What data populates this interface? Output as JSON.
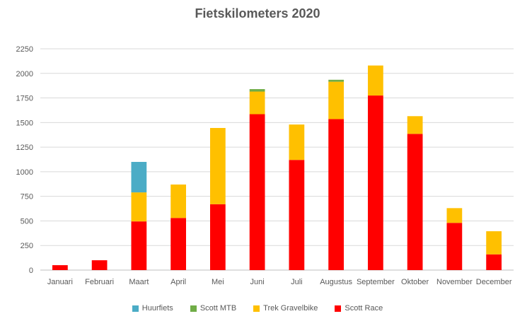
{
  "chart_data": {
    "type": "bar",
    "stacked": true,
    "title": "Fietskilometers 2020",
    "xlabel": "",
    "ylabel": "",
    "ylim": [
      0,
      2250
    ],
    "yticks": [
      "0",
      "250",
      "500",
      "750",
      "1000",
      "1250",
      "1500",
      "1750",
      "2000",
      "2250"
    ],
    "grid": true,
    "legend_position": "bottom",
    "categories": [
      "Januari",
      "Februari",
      "Maart",
      "April",
      "Mei",
      "Juni",
      "Juli",
      "Augustus",
      "September",
      "Oktober",
      "November",
      "December"
    ],
    "series": [
      {
        "name": "Scott Race",
        "color": "#ff0000",
        "values": [
          50,
          100,
          495,
          530,
          670,
          1585,
          1120,
          1535,
          1775,
          1385,
          480,
          160
        ]
      },
      {
        "name": "Trek Gravelbike",
        "color": "#ffc000",
        "values": [
          0,
          0,
          295,
          340,
          775,
          230,
          360,
          380,
          305,
          180,
          150,
          235
        ]
      },
      {
        "name": "Scott MTB",
        "color": "#70ad47",
        "values": [
          0,
          0,
          0,
          0,
          0,
          25,
          0,
          20,
          0,
          0,
          0,
          0
        ]
      },
      {
        "name": "Huurfiets",
        "color": "#4bacc6",
        "values": [
          0,
          0,
          310,
          0,
          0,
          0,
          0,
          0,
          0,
          0,
          0,
          0
        ]
      }
    ],
    "legend_order": [
      "Huurfiets",
      "Scott MTB",
      "Trek Gravelbike",
      "Scott Race"
    ]
  }
}
